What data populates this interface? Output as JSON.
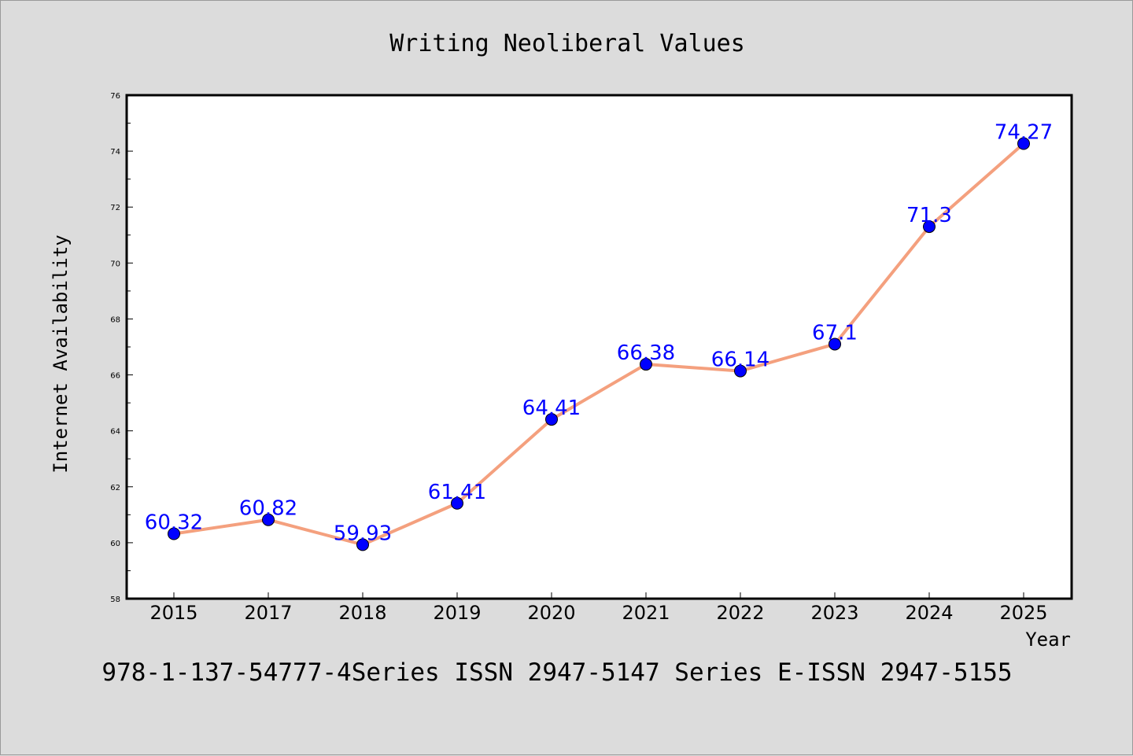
{
  "chart_data": {
    "type": "line",
    "title": "Writing Neoliberal Values",
    "xlabel": "Year",
    "ylabel": "Internet Availability",
    "categories": [
      "2015",
      "2017",
      "2018",
      "2019",
      "2020",
      "2021",
      "2022",
      "2023",
      "2024",
      "2025"
    ],
    "series": [
      {
        "values": [
          60.32,
          60.82,
          59.93,
          61.41,
          64.41,
          66.38,
          66.14,
          67.1,
          71.3,
          74.27
        ],
        "labels": [
          "60.32",
          "60.82",
          "59.93",
          "61.41",
          "64.41",
          "66.38",
          "66.14",
          "67.1",
          "71.3",
          "74.27"
        ],
        "line_color": "#f4a07e",
        "marker_color": "#0000ff"
      }
    ],
    "ylim": [
      58,
      76
    ],
    "yticks": [
      "58",
      "60",
      "62",
      "64",
      "66",
      "68",
      "70",
      "72",
      "74",
      "76"
    ],
    "grid": false,
    "legend": "none"
  },
  "footer_text": "978-1-137-54777-4Series ISSN 2947-5147 Series E-ISSN 2947-5155"
}
